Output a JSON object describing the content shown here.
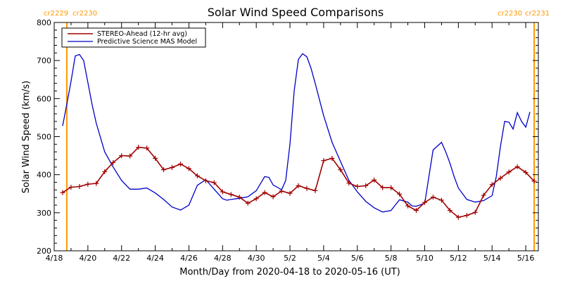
{
  "chart_data": {
    "type": "line",
    "title": "Solar Wind Speed Comparisons",
    "xlabel": "Month/Day from 2020-04-18 to 2020-05-16 (UT)",
    "ylabel": "Solar Wind Speed (km/s)",
    "xlim": [
      "2020-04-18",
      "2020-05-16T18:00"
    ],
    "ylim": [
      200,
      800
    ],
    "x_ticks": [
      "2020-04-18",
      "2020-04-20",
      "2020-04-22",
      "2020-04-24",
      "2020-04-26",
      "2020-04-28",
      "2020-04-30",
      "2020-05-02",
      "2020-05-04",
      "2020-05-06",
      "2020-05-08",
      "2020-05-10",
      "2020-05-12",
      "2020-05-14",
      "2020-05-16"
    ],
    "x_tick_labels": [
      "4/18",
      "4/20",
      "4/22",
      "4/24",
      "4/26",
      "4/28",
      "4/30",
      "5/2",
      "5/4",
      "5/6",
      "5/8",
      "5/10",
      "5/12",
      "5/14",
      "5/16"
    ],
    "y_ticks": [
      200,
      300,
      400,
      500,
      600,
      700,
      800
    ],
    "y_tick_labels": [
      "200",
      "300",
      "400",
      "500",
      "600",
      "700",
      "800"
    ],
    "legend_position": "top-left",
    "series": [
      {
        "name": "STEREO-Ahead (12-hr avg)",
        "color": "#a00000",
        "marker": "plus",
        "x": [
          "2020-04-18T12:00",
          "2020-04-19T00:00",
          "2020-04-19T12:00",
          "2020-04-20T00:00",
          "2020-04-20T12:00",
          "2020-04-21T00:00",
          "2020-04-21T12:00",
          "2020-04-22T00:00",
          "2020-04-22T12:00",
          "2020-04-23T00:00",
          "2020-04-23T12:00",
          "2020-04-24T00:00",
          "2020-04-24T12:00",
          "2020-04-25T00:00",
          "2020-04-25T12:00",
          "2020-04-26T00:00",
          "2020-04-26T12:00",
          "2020-04-27T00:00",
          "2020-04-27T12:00",
          "2020-04-28T00:00",
          "2020-04-28T12:00",
          "2020-04-29T00:00",
          "2020-04-29T12:00",
          "2020-04-30T00:00",
          "2020-04-30T12:00",
          "2020-05-01T00:00",
          "2020-05-01T12:00",
          "2020-05-02T00:00",
          "2020-05-02T12:00",
          "2020-05-03T00:00",
          "2020-05-03T12:00",
          "2020-05-04T00:00",
          "2020-05-04T12:00",
          "2020-05-05T00:00",
          "2020-05-05T12:00",
          "2020-05-06T00:00",
          "2020-05-06T12:00",
          "2020-05-07T00:00",
          "2020-05-07T12:00",
          "2020-05-08T00:00",
          "2020-05-08T12:00",
          "2020-05-09T00:00",
          "2020-05-09T12:00",
          "2020-05-10T00:00",
          "2020-05-10T12:00",
          "2020-05-11T00:00",
          "2020-05-11T12:00",
          "2020-05-12T00:00",
          "2020-05-12T12:00",
          "2020-05-13T00:00",
          "2020-05-13T12:00",
          "2020-05-14T00:00",
          "2020-05-14T12:00",
          "2020-05-15T00:00",
          "2020-05-15T12:00",
          "2020-05-16T00:00",
          "2020-05-16T12:00"
        ],
        "values": [
          353,
          367,
          369,
          375,
          377,
          408,
          432,
          450,
          449,
          472,
          470,
          443,
          413,
          419,
          428,
          416,
          397,
          384,
          379,
          355,
          348,
          341,
          325,
          337,
          353,
          342,
          357,
          351,
          371,
          364,
          358,
          437,
          443,
          413,
          378,
          369,
          371,
          386,
          366,
          366,
          349,
          318,
          306,
          327,
          341,
          333,
          306,
          288,
          293,
          301,
          346,
          374,
          391,
          407,
          421,
          406,
          383
        ]
      },
      {
        "name": "Predictive Science MAS Model",
        "color": "#0000c8",
        "marker": "none",
        "x": [
          "2020-04-18T12:00",
          "2020-04-18T18:00",
          "2020-04-19T00:00",
          "2020-04-19T06:00",
          "2020-04-19T12:00",
          "2020-04-19T18:00",
          "2020-04-20T00:00",
          "2020-04-20T06:00",
          "2020-04-20T12:00",
          "2020-04-21T00:00",
          "2020-04-21T12:00",
          "2020-04-22T00:00",
          "2020-04-22T12:00",
          "2020-04-23T00:00",
          "2020-04-23T12:00",
          "2020-04-24T00:00",
          "2020-04-24T12:00",
          "2020-04-25T00:00",
          "2020-04-25T12:00",
          "2020-04-26T00:00",
          "2020-04-26T12:00",
          "2020-04-27T00:00",
          "2020-04-27T12:00",
          "2020-04-28T00:00",
          "2020-04-28T06:00",
          "2020-04-28T12:00",
          "2020-04-29T00:00",
          "2020-04-29T12:00",
          "2020-04-30T00:00",
          "2020-04-30T12:00",
          "2020-04-30T18:00",
          "2020-05-01T00:00",
          "2020-05-01T06:00",
          "2020-05-01T12:00",
          "2020-05-01T18:00",
          "2020-05-02T00:00",
          "2020-05-02T06:00",
          "2020-05-02T12:00",
          "2020-05-02T18:00",
          "2020-05-03T00:00",
          "2020-05-03T06:00",
          "2020-05-03T12:00",
          "2020-05-04T00:00",
          "2020-05-04T12:00",
          "2020-05-05T00:00",
          "2020-05-05T12:00",
          "2020-05-06T00:00",
          "2020-05-06T12:00",
          "2020-05-07T00:00",
          "2020-05-07T12:00",
          "2020-05-08T00:00",
          "2020-05-08T12:00",
          "2020-05-09T00:00",
          "2020-05-09T06:00",
          "2020-05-09T12:00",
          "2020-05-10T00:00",
          "2020-05-10T12:00",
          "2020-05-11T00:00",
          "2020-05-11T06:00",
          "2020-05-11T12:00",
          "2020-05-11T18:00",
          "2020-05-12T00:00",
          "2020-05-12T12:00",
          "2020-05-13T00:00",
          "2020-05-13T12:00",
          "2020-05-14T00:00",
          "2020-05-14T06:00",
          "2020-05-14T12:00",
          "2020-05-14T18:00",
          "2020-05-15T00:00",
          "2020-05-15T06:00",
          "2020-05-15T12:00",
          "2020-05-15T18:00",
          "2020-05-16T00:00",
          "2020-05-16T06:00"
        ],
        "values": [
          528,
          585,
          645,
          712,
          716,
          700,
          642,
          585,
          535,
          460,
          420,
          385,
          362,
          362,
          365,
          352,
          335,
          315,
          307,
          320,
          372,
          387,
          362,
          337,
          333,
          335,
          338,
          342,
          358,
          395,
          393,
          373,
          367,
          360,
          385,
          480,
          620,
          703,
          718,
          710,
          680,
          640,
          555,
          485,
          435,
          385,
          355,
          330,
          313,
          302,
          306,
          334,
          328,
          318,
          317,
          325,
          465,
          485,
          460,
          430,
          395,
          365,
          335,
          328,
          332,
          345,
          395,
          475,
          540,
          538,
          520,
          563,
          540,
          525,
          565
        ]
      }
    ],
    "vertical_markers": [
      {
        "x": "2020-04-18T18:00",
        "label_left": "cr2229",
        "label_right": "cr2230",
        "color": "#ff9900"
      },
      {
        "x": "2020-05-16T12:00",
        "label_left": "cr2230",
        "label_right": "cr2231",
        "color": "#ff9900"
      }
    ]
  }
}
